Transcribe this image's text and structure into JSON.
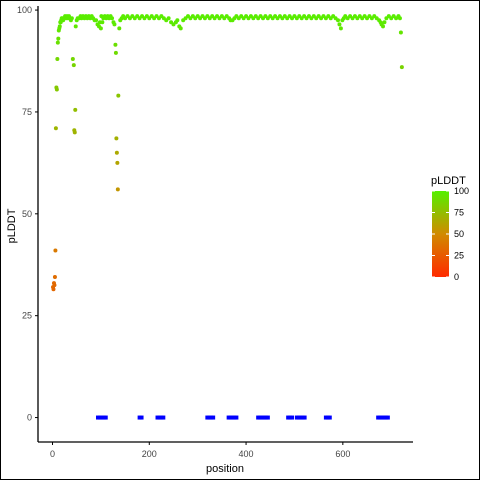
{
  "chart_data": {
    "type": "scatter",
    "xlabel": "position",
    "ylabel": "pLDDT",
    "xlim": [
      -30,
      745
    ],
    "ylim": [
      -6,
      101
    ],
    "x_ticks": [
      0,
      200,
      400,
      600
    ],
    "y_ticks": [
      0,
      25,
      50,
      75,
      100
    ],
    "grid": false,
    "color_scale": {
      "title": "pLDDT",
      "min": 0,
      "max": 100,
      "ticks": [
        0,
        25,
        50,
        75,
        100
      ],
      "stops": [
        {
          "value": 0,
          "color": "#ff2a00"
        },
        {
          "value": 50,
          "color": "#d18a00"
        },
        {
          "value": 100,
          "color": "#55f000"
        }
      ],
      "legend_position": "right"
    },
    "series": [
      {
        "marker": "circle",
        "points": [
          [
            1,
            32
          ],
          [
            2,
            31.5
          ],
          [
            3,
            33
          ],
          [
            4,
            32.5
          ],
          [
            5,
            34.5
          ],
          [
            6,
            41
          ],
          [
            7,
            71
          ],
          [
            8,
            81
          ],
          [
            9,
            80.5
          ],
          [
            10,
            88
          ],
          [
            11,
            92
          ],
          [
            12,
            93
          ],
          [
            13,
            95
          ],
          [
            14,
            95.5
          ],
          [
            15,
            96
          ],
          [
            16,
            97
          ],
          [
            17,
            97
          ],
          [
            18,
            97.5
          ],
          [
            19,
            98
          ],
          [
            20,
            98
          ],
          [
            22,
            97.5
          ],
          [
            24,
            98
          ],
          [
            26,
            98.5
          ],
          [
            28,
            98
          ],
          [
            30,
            98.5
          ],
          [
            32,
            98
          ],
          [
            34,
            98.5
          ],
          [
            36,
            98
          ],
          [
            38,
            97.5
          ],
          [
            40,
            98
          ],
          [
            42,
            88
          ],
          [
            44,
            86.5
          ],
          [
            45,
            70.5
          ],
          [
            46,
            70
          ],
          [
            47,
            75.5
          ],
          [
            48,
            96
          ],
          [
            50,
            97.5
          ],
          [
            52,
            98
          ],
          [
            55,
            98
          ],
          [
            58,
            98.5
          ],
          [
            60,
            98
          ],
          [
            63,
            98.5
          ],
          [
            66,
            98
          ],
          [
            69,
            98.5
          ],
          [
            72,
            98
          ],
          [
            75,
            98.5
          ],
          [
            78,
            98
          ],
          [
            81,
            98.5
          ],
          [
            84,
            98
          ],
          [
            87,
            97.5
          ],
          [
            90,
            97.5
          ],
          [
            93,
            96.5
          ],
          [
            96,
            96
          ],
          [
            98,
            97
          ],
          [
            100,
            95.5
          ],
          [
            101,
            98.5
          ],
          [
            103,
            97
          ],
          [
            105,
            98
          ],
          [
            108,
            98.5
          ],
          [
            111,
            98
          ],
          [
            114,
            98.5
          ],
          [
            117,
            98
          ],
          [
            120,
            98.5
          ],
          [
            123,
            98
          ],
          [
            126,
            97
          ],
          [
            128,
            96.5
          ],
          [
            130,
            91.5
          ],
          [
            131,
            89.5
          ],
          [
            132,
            68.5
          ],
          [
            133,
            65
          ],
          [
            134,
            62.5
          ],
          [
            135,
            56
          ],
          [
            136,
            79
          ],
          [
            138,
            95.5
          ],
          [
            140,
            97.5
          ],
          [
            143,
            98
          ],
          [
            146,
            98.5
          ],
          [
            150,
            98
          ],
          [
            155,
            98.5
          ],
          [
            160,
            98
          ],
          [
            165,
            98.5
          ],
          [
            170,
            98
          ],
          [
            175,
            98.5
          ],
          [
            180,
            98
          ],
          [
            185,
            98.5
          ],
          [
            190,
            98
          ],
          [
            195,
            98.5
          ],
          [
            200,
            98
          ],
          [
            205,
            98.5
          ],
          [
            210,
            98
          ],
          [
            215,
            98.5
          ],
          [
            220,
            98
          ],
          [
            225,
            98.5
          ],
          [
            230,
            98
          ],
          [
            235,
            97.5
          ],
          [
            240,
            98
          ],
          [
            245,
            97
          ],
          [
            250,
            96.5
          ],
          [
            255,
            97
          ],
          [
            258,
            97.5
          ],
          [
            262,
            96
          ],
          [
            265,
            95.5
          ],
          [
            270,
            97.5
          ],
          [
            275,
            98
          ],
          [
            280,
            98.5
          ],
          [
            285,
            98
          ],
          [
            290,
            98.5
          ],
          [
            295,
            98
          ],
          [
            300,
            98.5
          ],
          [
            305,
            98
          ],
          [
            310,
            98.5
          ],
          [
            315,
            98
          ],
          [
            320,
            98.5
          ],
          [
            325,
            98
          ],
          [
            330,
            98.5
          ],
          [
            335,
            98
          ],
          [
            340,
            98.5
          ],
          [
            345,
            98
          ],
          [
            350,
            98.5
          ],
          [
            355,
            98
          ],
          [
            360,
            98.5
          ],
          [
            365,
            98
          ],
          [
            368,
            97.5
          ],
          [
            372,
            97.5
          ],
          [
            376,
            98
          ],
          [
            380,
            98.5
          ],
          [
            385,
            98
          ],
          [
            390,
            98.5
          ],
          [
            395,
            98
          ],
          [
            400,
            98.5
          ],
          [
            405,
            98
          ],
          [
            410,
            98.5
          ],
          [
            415,
            98
          ],
          [
            420,
            98.5
          ],
          [
            425,
            98
          ],
          [
            430,
            98.5
          ],
          [
            435,
            98
          ],
          [
            440,
            98.5
          ],
          [
            445,
            98
          ],
          [
            450,
            98.5
          ],
          [
            455,
            98
          ],
          [
            460,
            98.5
          ],
          [
            465,
            98
          ],
          [
            470,
            98.5
          ],
          [
            475,
            98
          ],
          [
            480,
            98.5
          ],
          [
            485,
            98
          ],
          [
            490,
            98.5
          ],
          [
            495,
            98
          ],
          [
            500,
            98.5
          ],
          [
            505,
            98
          ],
          [
            510,
            98.5
          ],
          [
            515,
            98
          ],
          [
            520,
            98.5
          ],
          [
            525,
            98
          ],
          [
            530,
            98.5
          ],
          [
            535,
            98
          ],
          [
            540,
            98.5
          ],
          [
            545,
            98
          ],
          [
            550,
            98.5
          ],
          [
            555,
            98
          ],
          [
            560,
            98.5
          ],
          [
            565,
            98
          ],
          [
            570,
            98.5
          ],
          [
            575,
            98
          ],
          [
            580,
            98.5
          ],
          [
            585,
            98
          ],
          [
            590,
            97.5
          ],
          [
            593,
            96.5
          ],
          [
            596,
            95.5
          ],
          [
            599,
            97.5
          ],
          [
            602,
            98
          ],
          [
            605,
            98.5
          ],
          [
            610,
            98
          ],
          [
            615,
            98.5
          ],
          [
            620,
            98
          ],
          [
            625,
            98.5
          ],
          [
            630,
            98
          ],
          [
            635,
            98.5
          ],
          [
            640,
            98
          ],
          [
            645,
            98.5
          ],
          [
            650,
            98
          ],
          [
            655,
            98.5
          ],
          [
            660,
            98
          ],
          [
            665,
            98.5
          ],
          [
            670,
            98
          ],
          [
            675,
            97.5
          ],
          [
            678,
            97
          ],
          [
            680,
            96.5
          ],
          [
            683,
            96
          ],
          [
            686,
            97
          ],
          [
            690,
            98
          ],
          [
            695,
            98.5
          ],
          [
            700,
            98
          ],
          [
            705,
            98.5
          ],
          [
            710,
            98
          ],
          [
            715,
            98.5
          ],
          [
            718,
            98
          ],
          [
            720,
            94.5
          ],
          [
            722,
            86
          ]
        ]
      },
      {
        "color": "#0000ff",
        "marker": "square",
        "points": [
          [
            94,
            0
          ],
          [
            98,
            0
          ],
          [
            102,
            0
          ],
          [
            106,
            0
          ],
          [
            110,
            0
          ],
          [
            180,
            0
          ],
          [
            184,
            0
          ],
          [
            217,
            0
          ],
          [
            221,
            0
          ],
          [
            225,
            0
          ],
          [
            229,
            0
          ],
          [
            320,
            0
          ],
          [
            324,
            0
          ],
          [
            328,
            0
          ],
          [
            332,
            0
          ],
          [
            364,
            0
          ],
          [
            368,
            0
          ],
          [
            372,
            0
          ],
          [
            376,
            0
          ],
          [
            380,
            0
          ],
          [
            425,
            0
          ],
          [
            429,
            0
          ],
          [
            433,
            0
          ],
          [
            437,
            0
          ],
          [
            441,
            0
          ],
          [
            445,
            0
          ],
          [
            487,
            0
          ],
          [
            491,
            0
          ],
          [
            495,
            0
          ],
          [
            505,
            0
          ],
          [
            509,
            0
          ],
          [
            513,
            0
          ],
          [
            517,
            0
          ],
          [
            521,
            0
          ],
          [
            565,
            0
          ],
          [
            569,
            0
          ],
          [
            573,
            0
          ],
          [
            673,
            0
          ],
          [
            677,
            0
          ],
          [
            681,
            0
          ],
          [
            685,
            0
          ],
          [
            689,
            0
          ],
          [
            693,
            0
          ]
        ]
      }
    ]
  }
}
